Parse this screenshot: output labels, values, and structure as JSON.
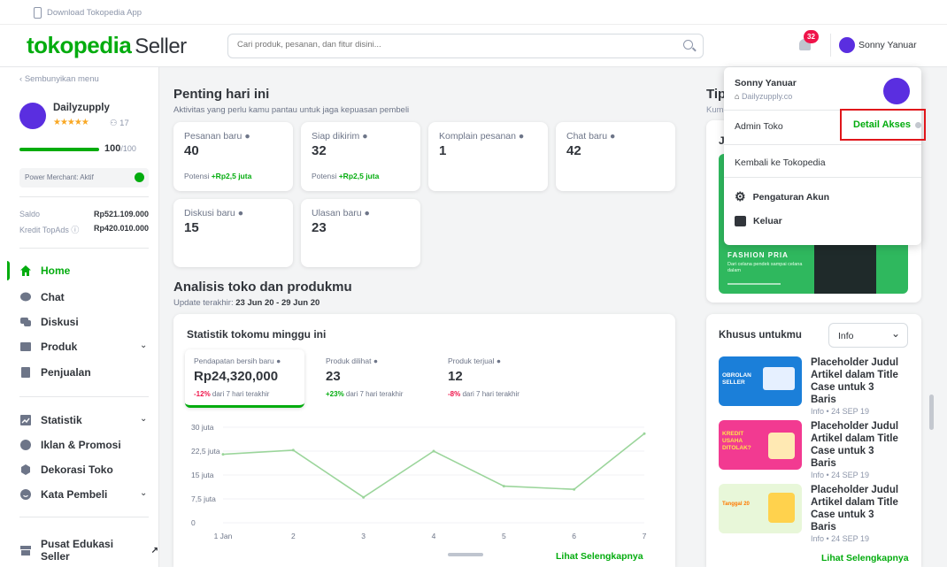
{
  "topbar": {
    "download_label": "Download Tokopedia App"
  },
  "header": {
    "logo_brand": "tokopedia",
    "logo_suffix": "Seller",
    "search_placeholder": "Cari produk, pesanan, dan fitur disini...",
    "notif_count": "32",
    "user_name": "Sonny Yanuar"
  },
  "sidebar": {
    "hide_menu": "Sembunyikan menu",
    "shop_name": "Dailyzupply",
    "followers": "17",
    "score": "100",
    "score_max": "/100",
    "score_fraction": 1.0,
    "pm_label": "Power Merchant: Aktif",
    "saldo_label": "Saldo",
    "saldo_value": "Rp521.109.000",
    "kredit_label": "Kredit TopAds",
    "kredit_value": "Rp420.010.000",
    "items": [
      {
        "label": "Home"
      },
      {
        "label": "Chat"
      },
      {
        "label": "Diskusi"
      },
      {
        "label": "Produk"
      },
      {
        "label": "Penjualan"
      },
      {
        "label": "Statistik"
      },
      {
        "label": "Iklan & Promosi"
      },
      {
        "label": "Dekorasi Toko"
      },
      {
        "label": "Kata Pembeli"
      },
      {
        "label": "Pusat Edukasi Seller"
      }
    ]
  },
  "today": {
    "title": "Penting hari ini",
    "subtitle": "Aktivitas yang perlu kamu pantau untuk jaga kepuasan pembeli",
    "cards": [
      {
        "label": "Pesanan baru",
        "value": "40",
        "note_prefix": "Potensi ",
        "note_value": "+Rp2,5 juta"
      },
      {
        "label": "Siap dikirim",
        "value": "32",
        "note_prefix": "Potensi ",
        "note_value": "+Rp2,5 juta"
      },
      {
        "label": "Komplain pesanan",
        "value": "1"
      },
      {
        "label": "Chat baru",
        "value": "42"
      },
      {
        "label": "Diskusi baru",
        "value": "15"
      },
      {
        "label": "Ulasan baru",
        "value": "23"
      }
    ]
  },
  "analysis": {
    "title": "Analisis toko dan produkmu",
    "update_prefix": "Update terakhir: ",
    "update_range": "23 Jun 20 - 29 Jun 20",
    "stat_title": "Statistik tokomu minggu ini",
    "metrics": [
      {
        "label": "Pendapatan bersih baru",
        "value": "Rp24,320,000",
        "delta": "-12%",
        "delta_suffix": " dari 7 hari terakhir"
      },
      {
        "label": "Produk dilihat",
        "value": "23",
        "delta": "+23%",
        "delta_suffix": " dari 7 hari terakhir"
      },
      {
        "label": "Produk terjual",
        "value": "12",
        "delta": "-8%",
        "delta_suffix": " dari 7 hari terakhir"
      }
    ],
    "more_link": "Lihat Selengkapnya"
  },
  "chart_data": {
    "type": "line",
    "x": [
      "1 Jan",
      "2",
      "3",
      "4",
      "5",
      "6",
      "7"
    ],
    "yticks": [
      "0",
      "7,5 juta",
      "15 juta",
      "22,5 juta",
      "30 juta"
    ],
    "ylim": [
      0,
      30
    ],
    "values": [
      21.5,
      22.8,
      8.0,
      22.5,
      11.5,
      10.5,
      28.0
    ],
    "color": "#9bd59b"
  },
  "tips": {
    "title": "Tip",
    "subtitle": "Kum",
    "inner_letter": "J",
    "banner_title": "FASHION PRIA",
    "banner_text": "Dari celana pendek sampai celana dalam"
  },
  "special": {
    "title": "Khusus untukmu",
    "select_value": "Info",
    "articles": [
      {
        "title": "Placeholder Judul Artikel dalam Title Case untuk 3 Baris",
        "meta": "Info • 24 SEP 19",
        "img_text": "OBROLAN SELLER"
      },
      {
        "title": "Placeholder Judul Artikel dalam Title Case untuk 3 Baris",
        "meta": "Info • 24 SEP 19",
        "img_text": "KREDIT USAHA DITOLAK?"
      },
      {
        "title": "Placeholder Judul Artikel dalam Title Case untuk 3 Baris",
        "meta": "Info • 24 SEP 19",
        "img_text": "Tanggal 20"
      }
    ],
    "more_link": "Lihat Selengkapnya"
  },
  "dropdown": {
    "name": "Sonny Yanuar",
    "shop": "Dailyzupply.co",
    "admin_label": "Admin Toko",
    "detail_link": "Detail Akses",
    "back_label": "Kembali ke Tokopedia",
    "settings_label": "Pengaturan Akun",
    "logout_label": "Keluar"
  },
  "colors": {
    "brand": "#03ac0e",
    "accent_purple": "#5a2ee0",
    "negative": "#ef144a",
    "notif_badge": "#ef144a",
    "highlight_border": "#e0161b"
  }
}
